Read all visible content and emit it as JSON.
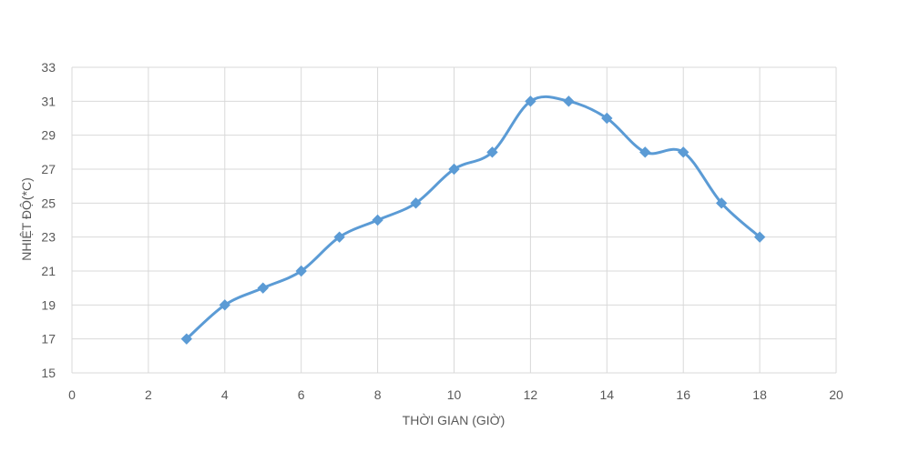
{
  "chart_data": {
    "type": "scatter",
    "style": "smoothed line with diamond markers",
    "xlabel": "THỜI GIAN (GIỜ)",
    "ylabel": "NHIỆT ĐỘ(*C)",
    "xlim": [
      0,
      20
    ],
    "ylim": [
      15,
      33
    ],
    "xticks": [
      0,
      2,
      4,
      6,
      8,
      10,
      12,
      14,
      16,
      18,
      20
    ],
    "yticks": [
      15,
      17,
      19,
      21,
      23,
      25,
      27,
      29,
      31,
      33
    ],
    "grid": true,
    "legend": "none",
    "colors": {
      "series": "#5B9BD5",
      "grid": "#D9D9D9",
      "text": "#595959"
    },
    "series": [
      {
        "x": [
          3,
          4,
          5,
          6,
          7,
          8,
          9,
          10,
          11,
          12,
          13,
          14,
          15,
          16,
          17,
          18
        ],
        "y": [
          17,
          19,
          20,
          21,
          23,
          24,
          25,
          27,
          28,
          31,
          31,
          30,
          28,
          28,
          25,
          23
        ]
      }
    ]
  }
}
